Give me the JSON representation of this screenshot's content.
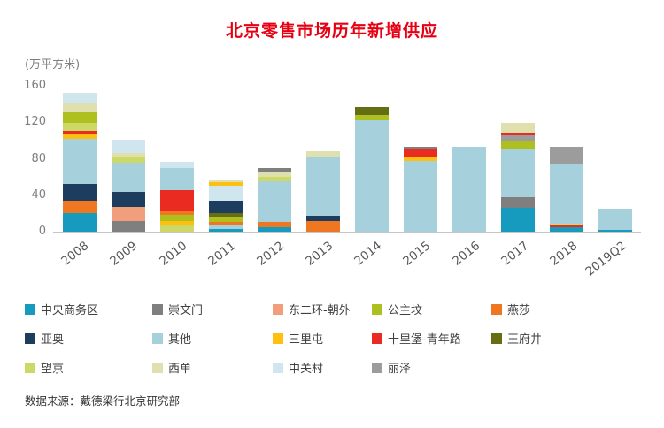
{
  "source_text": "数据来源：戴德梁行北京研究部",
  "chart_data": {
    "type": "bar",
    "subtype": "stacked-vertical",
    "title": "北京零售市场历年新增供应",
    "unit_label": "(万平方米)",
    "xlabel": "",
    "ylabel": "万平方米",
    "ylim": [
      0,
      160
    ],
    "yticks": [
      0,
      40,
      80,
      120,
      160
    ],
    "grid": false,
    "legend_position": "bottom",
    "categories": [
      "2008",
      "2009",
      "2010",
      "2011",
      "2012",
      "2013",
      "2014",
      "2015",
      "2016",
      "2017",
      "2018",
      "2019Q2"
    ],
    "legend": [
      {
        "name": "中央商务区",
        "color": "#169bbf"
      },
      {
        "name": "崇文门",
        "color": "#7f7f7f"
      },
      {
        "name": "东二环-朝外",
        "color": "#f19e7d"
      },
      {
        "name": "公主坟",
        "color": "#aebf20"
      },
      {
        "name": "燕莎",
        "color": "#ef7722"
      },
      {
        "name": "亚奥",
        "color": "#1d3d5e"
      },
      {
        "name": "其他",
        "color": "#a6d1dc"
      },
      {
        "name": "三里屯",
        "color": "#fdc00e"
      },
      {
        "name": "十里堡-青年路",
        "color": "#ea2b22"
      },
      {
        "name": "王府井",
        "color": "#666e14"
      },
      {
        "name": "望京",
        "color": "#cdd966"
      },
      {
        "name": "西单",
        "color": "#dfe0ae"
      },
      {
        "name": "中关村",
        "color": "#cfe6ee"
      },
      {
        "name": "丽泽",
        "color": "#9c9c9c"
      }
    ],
    "bars": [
      {
        "category": "2008",
        "total": 152,
        "segments": [
          [
            "中央商务区",
            20
          ],
          [
            "燕莎",
            14
          ],
          [
            "亚奥",
            18
          ],
          [
            "其他",
            50
          ],
          [
            "三里屯",
            6
          ],
          [
            "十里堡-青年路",
            3
          ],
          [
            "望京",
            8
          ],
          [
            "公主坟",
            12
          ],
          [
            "西单",
            10
          ],
          [
            "中关村",
            11
          ]
        ]
      },
      {
        "category": "2009",
        "total": 101,
        "segments": [
          [
            "崇文门",
            12
          ],
          [
            "东二环-朝外",
            15
          ],
          [
            "亚奥",
            17
          ],
          [
            "其他",
            32
          ],
          [
            "望京",
            6
          ],
          [
            "西单",
            4
          ],
          [
            "中关村",
            15
          ]
        ]
      },
      {
        "category": "2010",
        "total": 77,
        "segments": [
          [
            "望京",
            8
          ],
          [
            "三里屯",
            4
          ],
          [
            "公主坟",
            6
          ],
          [
            "燕莎",
            4
          ],
          [
            "十里堡-青年路",
            24
          ],
          [
            "其他",
            24
          ],
          [
            "中关村",
            7
          ]
        ]
      },
      {
        "category": "2011",
        "total": 56,
        "segments": [
          [
            "中央商务区",
            3
          ],
          [
            "其他",
            5
          ],
          [
            "燕莎",
            3
          ],
          [
            "公主坟",
            5
          ],
          [
            "王府井",
            4
          ],
          [
            "亚奥",
            14
          ],
          [
            "中关村",
            16
          ],
          [
            "三里屯",
            4
          ],
          [
            "西单",
            2
          ]
        ]
      },
      {
        "category": "2012",
        "total": 70,
        "segments": [
          [
            "中央商务区",
            5
          ],
          [
            "燕莎",
            6
          ],
          [
            "其他",
            44
          ],
          [
            "望京",
            5
          ],
          [
            "西单",
            6
          ],
          [
            "崇文门",
            4
          ]
        ]
      },
      {
        "category": "2013",
        "total": 88,
        "segments": [
          [
            "燕莎",
            12
          ],
          [
            "亚奥",
            5
          ],
          [
            "其他",
            65
          ],
          [
            "西单",
            6
          ]
        ]
      },
      {
        "category": "2014",
        "total": 137,
        "segments": [
          [
            "其他",
            122
          ],
          [
            "公主坟",
            6
          ],
          [
            "王府井",
            9
          ]
        ]
      },
      {
        "category": "2015",
        "total": 93,
        "segments": [
          [
            "其他",
            78
          ],
          [
            "三里屯",
            4
          ],
          [
            "十里堡-青年路",
            8
          ],
          [
            "崇文门",
            3
          ]
        ]
      },
      {
        "category": "2016",
        "total": 93,
        "segments": [
          [
            "其他",
            93
          ]
        ]
      },
      {
        "category": "2017",
        "total": 119,
        "segments": [
          [
            "中央商务区",
            26
          ],
          [
            "崇文门",
            12
          ],
          [
            "其他",
            52
          ],
          [
            "公主坟",
            10
          ],
          [
            "丽泽",
            6
          ],
          [
            "十里堡-青年路",
            3
          ],
          [
            "西单",
            10
          ]
        ]
      },
      {
        "category": "2018",
        "total": 93,
        "segments": [
          [
            "中央商务区",
            5
          ],
          [
            "十里堡-青年路",
            2
          ],
          [
            "望京",
            2
          ],
          [
            "其他",
            66
          ],
          [
            "丽泽",
            18
          ]
        ]
      },
      {
        "category": "2019Q2",
        "total": 25,
        "segments": [
          [
            "中央商务区",
            2
          ],
          [
            "其他",
            23
          ]
        ]
      }
    ]
  }
}
